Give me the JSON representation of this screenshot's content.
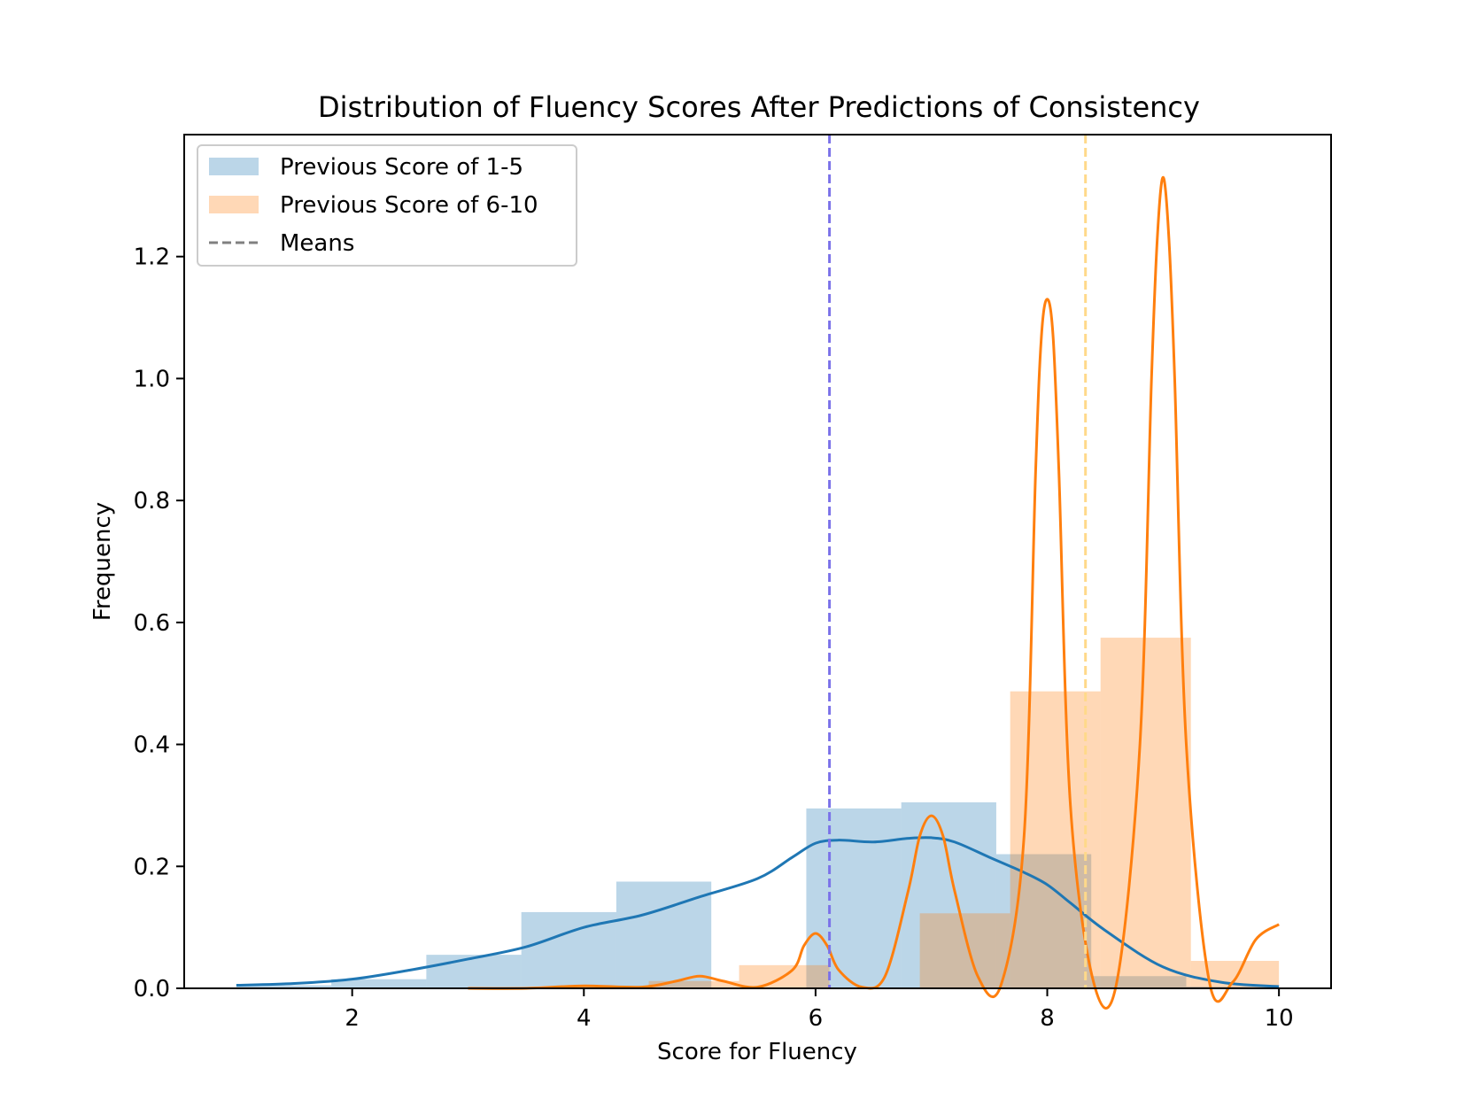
{
  "chart_data": {
    "type": "bar",
    "title": "Distribution of Fluency Scores After Predictions of Consistency",
    "xlabel": "Score for Fluency",
    "ylabel": "Frequency",
    "xlim": [
      0.55,
      10.45
    ],
    "ylim": [
      0,
      1.4
    ],
    "xticks": [
      2,
      4,
      6,
      8,
      10
    ],
    "yticks": [
      0.0,
      0.2,
      0.4,
      0.6,
      0.8,
      1.0,
      1.2
    ],
    "grid": false,
    "legend_position": "top-left",
    "legend": [
      {
        "label": "Previous Score of 1-5",
        "kind": "patch",
        "color": "#1f77b4"
      },
      {
        "label": "Previous Score of 6-10",
        "kind": "patch",
        "color": "#ff7f0e"
      },
      {
        "label": "Means",
        "kind": "dashed-line",
        "color": "#808080"
      }
    ],
    "series": [
      {
        "name": "Previous Score of 1-5",
        "kind": "histogram",
        "color": "#1f77b4",
        "opacity": 0.3,
        "bins": [
          {
            "x0": 1.0,
            "x1": 1.82,
            "value": 0.005
          },
          {
            "x0": 1.82,
            "x1": 2.64,
            "value": 0.015
          },
          {
            "x0": 2.64,
            "x1": 3.46,
            "value": 0.055
          },
          {
            "x0": 3.46,
            "x1": 4.28,
            "value": 0.125
          },
          {
            "x0": 4.28,
            "x1": 5.1,
            "value": 0.175
          },
          {
            "x0": 5.1,
            "x1": 5.92,
            "value": 0.0
          },
          {
            "x0": 5.92,
            "x1": 6.74,
            "value": 0.295
          },
          {
            "x0": 6.74,
            "x1": 7.56,
            "value": 0.305
          },
          {
            "x0": 7.56,
            "x1": 8.38,
            "value": 0.22
          },
          {
            "x0": 8.38,
            "x1": 9.2,
            "value": 0.02
          },
          {
            "x0": 9.2,
            "x1": 10.0,
            "value": 0.003
          }
        ]
      },
      {
        "name": "Previous Score of 6-10",
        "kind": "histogram",
        "color": "#ff7f0e",
        "opacity": 0.3,
        "bins": [
          {
            "x0": 3.0,
            "x1": 3.78,
            "value": 0.002
          },
          {
            "x0": 3.78,
            "x1": 4.56,
            "value": 0.004
          },
          {
            "x0": 4.56,
            "x1": 5.34,
            "value": 0.012
          },
          {
            "x0": 5.34,
            "x1": 6.12,
            "value": 0.038
          },
          {
            "x0": 6.12,
            "x1": 6.9,
            "value": 0.0
          },
          {
            "x0": 6.9,
            "x1": 7.68,
            "value": 0.123
          },
          {
            "x0": 7.68,
            "x1": 8.46,
            "value": 0.487
          },
          {
            "x0": 8.46,
            "x1": 9.24,
            "value": 0.575
          },
          {
            "x0": 9.24,
            "x1": 10.0,
            "value": 0.045
          }
        ]
      },
      {
        "name": "Previous Score of 1-5",
        "kind": "kde",
        "color": "#1f77b4",
        "x": [
          1.0,
          1.5,
          2.0,
          2.5,
          3.0,
          3.5,
          4.0,
          4.5,
          5.0,
          5.5,
          5.8,
          6.0,
          6.2,
          6.5,
          6.8,
          7.0,
          7.2,
          7.5,
          7.8,
          8.0,
          8.2,
          8.5,
          9.0,
          9.5,
          10.0
        ],
        "y": [
          0.005,
          0.008,
          0.015,
          0.03,
          0.048,
          0.068,
          0.1,
          0.12,
          0.15,
          0.18,
          0.215,
          0.238,
          0.243,
          0.24,
          0.246,
          0.247,
          0.24,
          0.215,
          0.19,
          0.17,
          0.14,
          0.095,
          0.035,
          0.01,
          0.003
        ]
      },
      {
        "name": "Previous Score of 6-10",
        "kind": "kde",
        "color": "#ff7f0e",
        "x": [
          3.0,
          3.5,
          4.0,
          4.5,
          4.8,
          5.0,
          5.2,
          5.5,
          5.8,
          5.9,
          6.0,
          6.1,
          6.2,
          6.4,
          6.6,
          6.8,
          6.9,
          7.0,
          7.1,
          7.2,
          7.4,
          7.6,
          7.8,
          7.9,
          7.95,
          8.0,
          8.05,
          8.1,
          8.2,
          8.4,
          8.6,
          8.8,
          8.9,
          8.95,
          9.0,
          9.05,
          9.1,
          9.2,
          9.4,
          9.6,
          9.8,
          10.0
        ],
        "y": [
          0.0,
          0.0,
          0.004,
          0.002,
          0.012,
          0.02,
          0.012,
          0.002,
          0.03,
          0.07,
          0.09,
          0.07,
          0.03,
          0.002,
          0.02,
          0.16,
          0.25,
          0.283,
          0.25,
          0.16,
          0.02,
          0.005,
          0.25,
          0.85,
          1.07,
          1.13,
          1.07,
          0.85,
          0.3,
          0.01,
          0.01,
          0.4,
          1.0,
          1.23,
          1.33,
          1.23,
          1.0,
          0.4,
          0.01,
          0.01,
          0.08,
          0.105
        ]
      }
    ],
    "means": [
      {
        "series": "Previous Score of 1-5",
        "value": 6.12,
        "color": "#7b72e9"
      },
      {
        "series": "Previous Score of 6-10",
        "value": 8.33,
        "color": "#ffd98a"
      }
    ]
  }
}
